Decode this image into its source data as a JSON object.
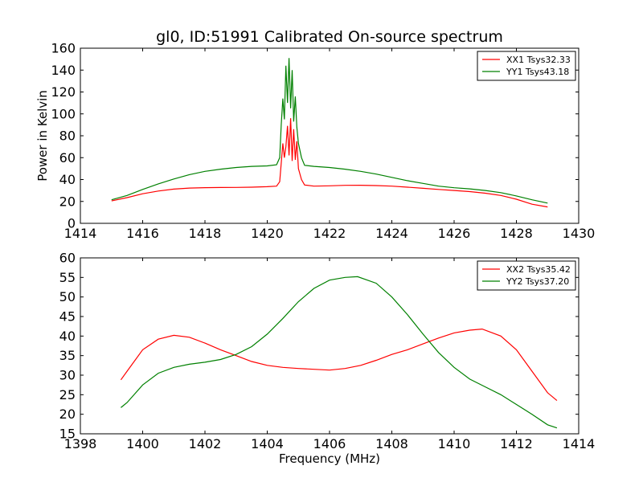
{
  "figure": {
    "title": "gl0, ID:51991 Calibrated On-source spectrum",
    "bg": "#ffffff"
  },
  "chart_data": [
    {
      "type": "line",
      "title": "gl0, ID:51991 Calibrated On-source spectrum",
      "xlabel": "",
      "ylabel": "Power in Kelvin",
      "xlim": [
        1414,
        1430
      ],
      "ylim": [
        0,
        160
      ],
      "xticks": [
        1414,
        1416,
        1418,
        1420,
        1422,
        1424,
        1426,
        1428,
        1430
      ],
      "yticks": [
        0,
        20,
        40,
        60,
        80,
        100,
        120,
        140,
        160
      ],
      "grid": false,
      "legend_position": "top-right",
      "series": [
        {
          "name": "XX1 Tsys32.33",
          "color": "#ff0000",
          "points": [
            [
              1415.0,
              20.5
            ],
            [
              1415.5,
              23.5
            ],
            [
              1416.0,
              27.0
            ],
            [
              1416.5,
              29.5
            ],
            [
              1417.0,
              31.3
            ],
            [
              1417.5,
              32.2
            ],
            [
              1418.0,
              32.6
            ],
            [
              1418.5,
              32.7
            ],
            [
              1419.0,
              32.8
            ],
            [
              1419.5,
              33.0
            ],
            [
              1420.0,
              33.5
            ],
            [
              1420.3,
              34.0
            ],
            [
              1420.4,
              38.0
            ],
            [
              1420.45,
              55.0
            ],
            [
              1420.5,
              73.0
            ],
            [
              1420.55,
              60.0
            ],
            [
              1420.6,
              70.0
            ],
            [
              1420.65,
              89.0
            ],
            [
              1420.7,
              62.0
            ],
            [
              1420.75,
              96.0
            ],
            [
              1420.8,
              57.0
            ],
            [
              1420.85,
              86.0
            ],
            [
              1420.9,
              58.0
            ],
            [
              1420.95,
              75.0
            ],
            [
              1421.0,
              50.0
            ],
            [
              1421.1,
              40.0
            ],
            [
              1421.2,
              35.0
            ],
            [
              1421.5,
              34.0
            ],
            [
              1422.0,
              34.3
            ],
            [
              1422.5,
              34.7
            ],
            [
              1423.0,
              34.8
            ],
            [
              1423.5,
              34.5
            ],
            [
              1424.0,
              34.0
            ],
            [
              1424.5,
              33.0
            ],
            [
              1425.0,
              32.0
            ],
            [
              1425.5,
              31.0
            ],
            [
              1426.0,
              30.0
            ],
            [
              1426.5,
              29.0
            ],
            [
              1427.0,
              27.5
            ],
            [
              1427.5,
              25.5
            ],
            [
              1428.0,
              22.0
            ],
            [
              1428.5,
              17.5
            ],
            [
              1429.0,
              15.0
            ]
          ]
        },
        {
          "name": "YY1 Tsys43.18",
          "color": "#008000",
          "points": [
            [
              1415.0,
              21.5
            ],
            [
              1415.5,
              25.5
            ],
            [
              1416.0,
              31.0
            ],
            [
              1416.5,
              36.0
            ],
            [
              1417.0,
              40.5
            ],
            [
              1417.5,
              44.5
            ],
            [
              1418.0,
              47.5
            ],
            [
              1418.5,
              49.5
            ],
            [
              1419.0,
              51.0
            ],
            [
              1419.5,
              52.0
            ],
            [
              1420.0,
              52.5
            ],
            [
              1420.3,
              53.5
            ],
            [
              1420.4,
              60.0
            ],
            [
              1420.45,
              90.0
            ],
            [
              1420.5,
              114.0
            ],
            [
              1420.55,
              95.0
            ],
            [
              1420.6,
              144.0
            ],
            [
              1420.65,
              110.0
            ],
            [
              1420.7,
              151.0
            ],
            [
              1420.75,
              105.0
            ],
            [
              1420.8,
              140.0
            ],
            [
              1420.85,
              93.0
            ],
            [
              1420.9,
              116.0
            ],
            [
              1420.95,
              88.0
            ],
            [
              1421.0,
              73.0
            ],
            [
              1421.1,
              60.0
            ],
            [
              1421.2,
              53.0
            ],
            [
              1421.5,
              52.0
            ],
            [
              1422.0,
              51.0
            ],
            [
              1422.5,
              49.5
            ],
            [
              1423.0,
              47.5
            ],
            [
              1423.5,
              45.0
            ],
            [
              1424.0,
              42.0
            ],
            [
              1424.5,
              39.0
            ],
            [
              1425.0,
              36.5
            ],
            [
              1425.5,
              34.0
            ],
            [
              1426.0,
              32.5
            ],
            [
              1426.5,
              31.5
            ],
            [
              1427.0,
              30.0
            ],
            [
              1427.5,
              28.0
            ],
            [
              1428.0,
              25.0
            ],
            [
              1428.5,
              21.5
            ],
            [
              1429.0,
              18.5
            ]
          ]
        }
      ]
    },
    {
      "type": "line",
      "title": "",
      "xlabel": "Frequency (MHz)",
      "ylabel": "",
      "xlim": [
        1398,
        1414
      ],
      "ylim": [
        15,
        60
      ],
      "xticks": [
        1398,
        1400,
        1402,
        1404,
        1406,
        1408,
        1410,
        1412,
        1414
      ],
      "yticks": [
        15,
        20,
        25,
        30,
        35,
        40,
        45,
        50,
        55,
        60
      ],
      "grid": false,
      "legend_position": "top-right",
      "series": [
        {
          "name": "XX2 Tsys35.42",
          "color": "#ff0000",
          "points": [
            [
              1399.3,
              28.8
            ],
            [
              1399.5,
              31.0
            ],
            [
              1400.0,
              36.5
            ],
            [
              1400.5,
              39.2
            ],
            [
              1401.0,
              40.2
            ],
            [
              1401.5,
              39.7
            ],
            [
              1402.0,
              38.2
            ],
            [
              1402.5,
              36.5
            ],
            [
              1403.0,
              35.0
            ],
            [
              1403.5,
              33.5
            ],
            [
              1404.0,
              32.5
            ],
            [
              1404.5,
              32.0
            ],
            [
              1405.0,
              31.7
            ],
            [
              1405.5,
              31.5
            ],
            [
              1406.0,
              31.3
            ],
            [
              1406.5,
              31.7
            ],
            [
              1407.0,
              32.5
            ],
            [
              1407.5,
              33.8
            ],
            [
              1408.0,
              35.3
            ],
            [
              1408.5,
              36.5
            ],
            [
              1409.0,
              38.0
            ],
            [
              1409.5,
              39.5
            ],
            [
              1410.0,
              40.8
            ],
            [
              1410.5,
              41.5
            ],
            [
              1410.9,
              41.8
            ],
            [
              1411.5,
              40.0
            ],
            [
              1412.0,
              36.5
            ],
            [
              1412.5,
              31.0
            ],
            [
              1413.0,
              25.5
            ],
            [
              1413.3,
              23.5
            ]
          ]
        },
        {
          "name": "YY2 Tsys37.20",
          "color": "#008000",
          "points": [
            [
              1399.3,
              21.7
            ],
            [
              1399.5,
              23.0
            ],
            [
              1400.0,
              27.5
            ],
            [
              1400.5,
              30.5
            ],
            [
              1401.0,
              32.0
            ],
            [
              1401.5,
              32.8
            ],
            [
              1402.0,
              33.3
            ],
            [
              1402.5,
              34.0
            ],
            [
              1403.0,
              35.3
            ],
            [
              1403.5,
              37.3
            ],
            [
              1404.0,
              40.5
            ],
            [
              1404.5,
              44.5
            ],
            [
              1405.0,
              48.8
            ],
            [
              1405.5,
              52.2
            ],
            [
              1406.0,
              54.3
            ],
            [
              1406.5,
              55.0
            ],
            [
              1406.9,
              55.2
            ],
            [
              1407.5,
              53.5
            ],
            [
              1408.0,
              50.0
            ],
            [
              1408.5,
              45.5
            ],
            [
              1409.0,
              40.5
            ],
            [
              1409.5,
              35.8
            ],
            [
              1410.0,
              32.0
            ],
            [
              1410.5,
              29.0
            ],
            [
              1411.0,
              27.0
            ],
            [
              1411.5,
              25.0
            ],
            [
              1412.0,
              22.5
            ],
            [
              1412.5,
              20.0
            ],
            [
              1413.0,
              17.3
            ],
            [
              1413.3,
              16.5
            ]
          ]
        }
      ]
    }
  ]
}
